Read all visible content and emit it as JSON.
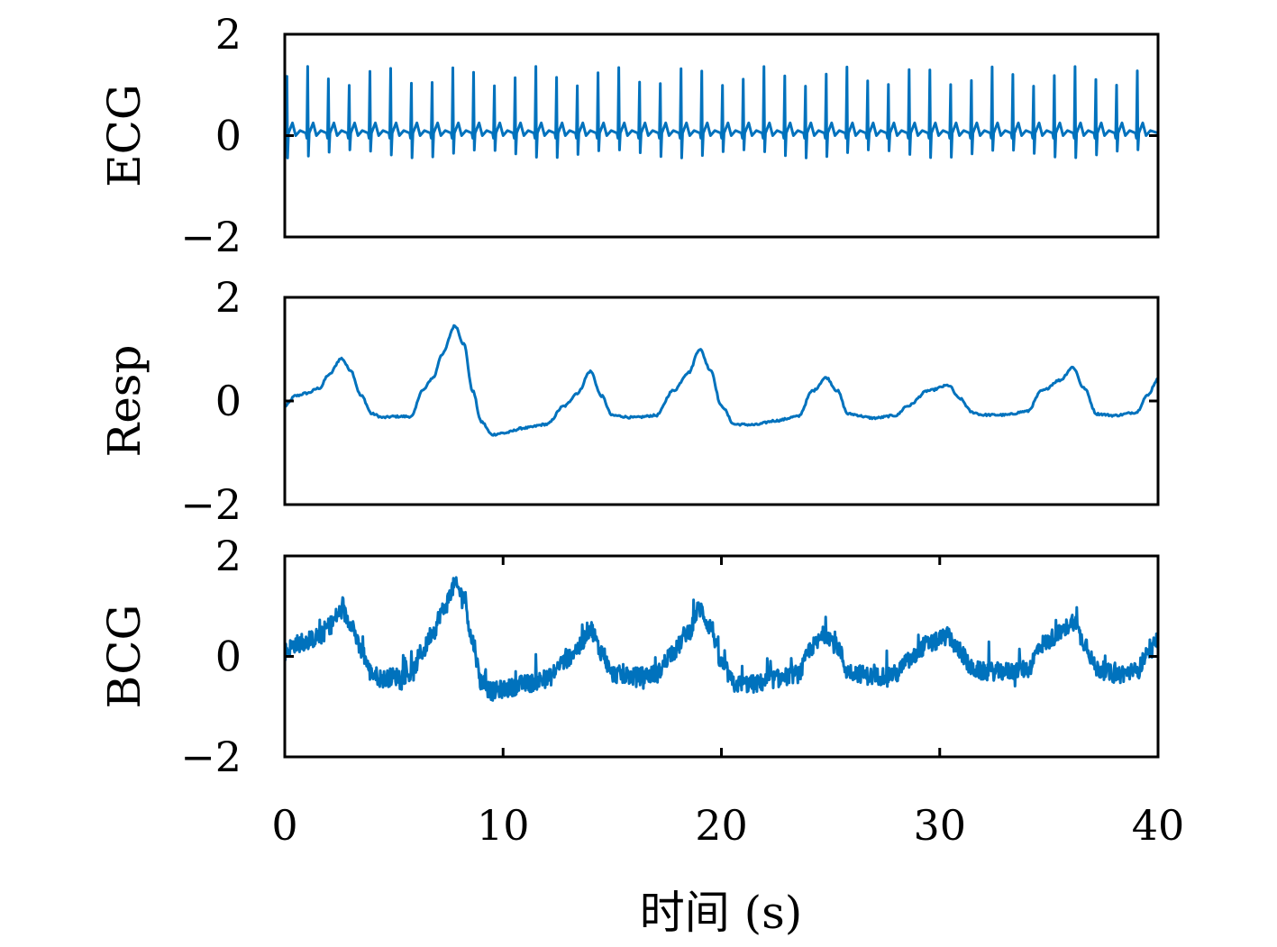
{
  "chart_data": {
    "type": "line",
    "line_color": "#0072BD",
    "x_label": "时间 (s)",
    "x_range": [
      0,
      40
    ],
    "x_ticks": [
      0,
      10,
      20,
      30,
      40
    ],
    "grid": false,
    "legend": "none",
    "panels": [
      {
        "id": "ecg",
        "ylabel": "ECG",
        "ylim": [
          -2,
          2
        ],
        "yticks": [
          -2,
          0,
          2
        ],
        "ytick_labels": [
          "−2",
          "0",
          "2"
        ],
        "x_tick_marks": false,
        "signal": {
          "kind": "spikes",
          "baseline": 0.05,
          "beat_times": [
            0.1,
            1.05,
            2.0,
            2.95,
            3.9,
            4.85,
            5.8,
            6.75,
            7.7,
            8.65,
            9.6,
            10.55,
            11.5,
            12.45,
            13.4,
            14.35,
            15.3,
            16.25,
            17.2,
            18.15,
            19.1,
            20.05,
            21.0,
            21.95,
            22.9,
            23.85,
            24.8,
            25.75,
            26.7,
            27.65,
            28.6,
            29.55,
            30.5,
            31.45,
            32.4,
            33.35,
            34.3,
            35.25,
            36.2,
            37.15,
            38.1,
            39.05
          ],
          "r_peak": 1.3,
          "s_trough": -0.4,
          "t_wave": 0.2
        }
      },
      {
        "id": "resp",
        "ylabel": "Resp",
        "ylim": [
          -2,
          2
        ],
        "yticks": [
          -2,
          0,
          2
        ],
        "ytick_labels": [
          "−2",
          "0",
          "2"
        ],
        "x_tick_marks": false,
        "signal": {
          "kind": "breath",
          "x": [
            0,
            0.5,
            1.0,
            1.6,
            2.0,
            2.6,
            3.0,
            3.5,
            4.0,
            4.5,
            5.0,
            5.8,
            6.3,
            6.8,
            7.2,
            7.8,
            8.2,
            8.6,
            9.0,
            9.5,
            10.0,
            11.0,
            12.0,
            12.8,
            13.4,
            14.0,
            14.5,
            15.0,
            16.0,
            17.0,
            17.8,
            18.5,
            19.0,
            19.5,
            20.0,
            20.6,
            21.5,
            22.5,
            23.5,
            24.2,
            24.8,
            25.3,
            25.8,
            27.0,
            28.0,
            28.5,
            29.5,
            30.4,
            30.9,
            31.5,
            32.0,
            33.0,
            34.0,
            34.7,
            35.5,
            36.1,
            36.6,
            37.2,
            38.0,
            39.0,
            39.5,
            40.0
          ],
          "y": [
            -0.1,
            0.1,
            0.15,
            0.25,
            0.5,
            0.82,
            0.6,
            0.1,
            -0.25,
            -0.32,
            -0.3,
            -0.3,
            0.2,
            0.45,
            0.9,
            1.45,
            1.1,
            0.2,
            -0.4,
            -0.65,
            -0.62,
            -0.52,
            -0.45,
            -0.1,
            0.15,
            0.57,
            0.1,
            -0.28,
            -0.32,
            -0.28,
            0.2,
            0.55,
            1.0,
            0.6,
            -0.1,
            -0.45,
            -0.46,
            -0.38,
            -0.3,
            0.2,
            0.45,
            0.2,
            -0.25,
            -0.33,
            -0.28,
            -0.1,
            0.2,
            0.3,
            0.05,
            -0.22,
            -0.27,
            -0.27,
            -0.2,
            0.2,
            0.4,
            0.65,
            0.25,
            -0.25,
            -0.28,
            -0.22,
            0.1,
            0.42
          ],
          "noise": 0.02
        }
      },
      {
        "id": "bcg",
        "ylabel": "BCG",
        "ylim": [
          -2,
          2
        ],
        "yticks": [
          -2,
          0,
          2
        ],
        "ytick_labels": [
          "−2",
          "0",
          "2"
        ],
        "x_tick_marks": true,
        "signal": {
          "kind": "resp_plus_noise",
          "x": [
            0,
            0.5,
            1.0,
            1.6,
            2.0,
            2.6,
            3.0,
            3.5,
            4.0,
            4.5,
            5.0,
            5.8,
            6.3,
            6.8,
            7.2,
            7.8,
            8.2,
            8.6,
            9.0,
            9.5,
            10.0,
            11.0,
            12.0,
            12.8,
            13.4,
            14.0,
            14.5,
            15.0,
            16.0,
            17.0,
            17.8,
            18.5,
            19.0,
            19.5,
            20.0,
            20.6,
            21.5,
            22.5,
            23.5,
            24.2,
            24.8,
            25.3,
            25.8,
            27.0,
            28.0,
            28.5,
            29.5,
            30.4,
            30.9,
            31.5,
            32.0,
            33.0,
            34.0,
            34.7,
            35.5,
            36.1,
            36.6,
            37.2,
            38.0,
            39.0,
            39.5,
            40.0
          ],
          "y": [
            0.1,
            0.25,
            0.3,
            0.4,
            0.6,
            0.9,
            0.7,
            0.1,
            -0.35,
            -0.45,
            -0.4,
            -0.35,
            0.1,
            0.5,
            0.9,
            1.4,
            1.2,
            0.3,
            -0.5,
            -0.7,
            -0.65,
            -0.55,
            -0.45,
            -0.1,
            0.15,
            0.55,
            0.1,
            -0.35,
            -0.4,
            -0.35,
            0.1,
            0.5,
            0.95,
            0.6,
            -0.15,
            -0.55,
            -0.55,
            -0.45,
            -0.35,
            0.2,
            0.45,
            0.2,
            -0.3,
            -0.4,
            -0.35,
            -0.1,
            0.25,
            0.4,
            0.1,
            -0.25,
            -0.3,
            -0.3,
            -0.25,
            0.25,
            0.45,
            0.7,
            0.3,
            -0.25,
            -0.35,
            -0.3,
            0.0,
            0.3
          ],
          "noise": 0.18
        }
      }
    ]
  }
}
